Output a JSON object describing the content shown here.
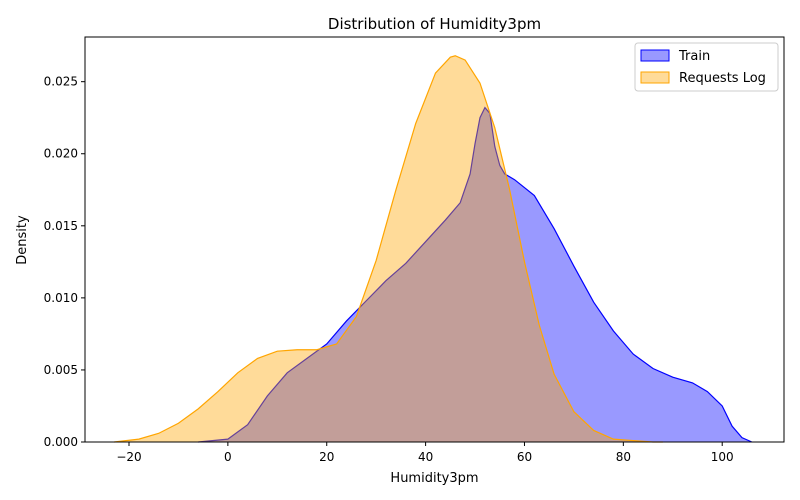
{
  "chart_data": {
    "type": "area",
    "title": "Distribution of Humidity3pm",
    "xlabel": "Humidity3pm",
    "ylabel": "Density",
    "xlim": [
      -28.9,
      112.5
    ],
    "ylim": [
      0,
      0.0281
    ],
    "x_ticks": [
      -20,
      0,
      20,
      40,
      60,
      80,
      100
    ],
    "x_tick_labels": [
      "−20",
      "0",
      "20",
      "40",
      "60",
      "80",
      "100"
    ],
    "y_ticks": [
      0,
      0.005,
      0.01,
      0.015,
      0.02,
      0.025
    ],
    "y_tick_labels": [
      "0.000",
      "0.005",
      "0.010",
      "0.015",
      "0.020",
      "0.025"
    ],
    "grid": false,
    "legend": {
      "position": "top-right"
    },
    "series": [
      {
        "name": "Train",
        "fill": "#0000ff",
        "line": "#0000ff",
        "x": [
          -6,
          0,
          4,
          8,
          12,
          16,
          20,
          24,
          28,
          32,
          36,
          40,
          44,
          47,
          49,
          50,
          51,
          52,
          53,
          54,
          55,
          56,
          58,
          62,
          66,
          70,
          74,
          78,
          82,
          86,
          90,
          94,
          97,
          100,
          102,
          104,
          106
        ],
        "y": [
          0.0,
          0.0002,
          0.0012,
          0.0032,
          0.0048,
          0.0058,
          0.0068,
          0.0084,
          0.0098,
          0.0112,
          0.0124,
          0.0139,
          0.0154,
          0.0166,
          0.0186,
          0.0207,
          0.0225,
          0.0232,
          0.0228,
          0.0205,
          0.0192,
          0.0186,
          0.0182,
          0.0171,
          0.0148,
          0.0122,
          0.0097,
          0.0077,
          0.0061,
          0.0051,
          0.0045,
          0.0041,
          0.0035,
          0.0025,
          0.0011,
          0.0003,
          0.0
        ]
      },
      {
        "name": "Requests Log",
        "fill": "#ffa500",
        "line": "#ffa500",
        "x": [
          -23,
          -18,
          -14,
          -10,
          -6,
          -2,
          2,
          6,
          10,
          14,
          18,
          22,
          26,
          30,
          34,
          38,
          42,
          45,
          46,
          48,
          51,
          54,
          57,
          60,
          63,
          66,
          70,
          74,
          78,
          82,
          86,
          88
        ],
        "y": [
          0.0,
          0.0002,
          0.0006,
          0.0013,
          0.0023,
          0.0035,
          0.0048,
          0.0058,
          0.0063,
          0.0064,
          0.0064,
          0.0068,
          0.0087,
          0.0126,
          0.0175,
          0.0221,
          0.0256,
          0.0267,
          0.0268,
          0.0265,
          0.0249,
          0.0218,
          0.0175,
          0.0125,
          0.0081,
          0.0047,
          0.0021,
          0.0008,
          0.0002,
          0.0001,
          0.0,
          0.0
        ]
      }
    ]
  }
}
